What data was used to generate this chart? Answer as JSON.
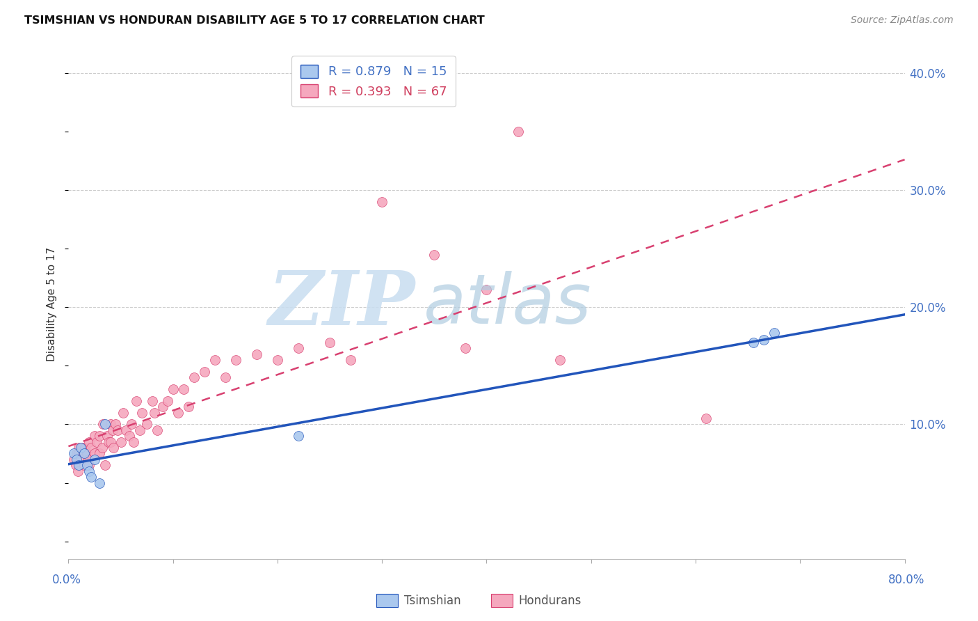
{
  "title": "TSIMSHIAN VS HONDURAN DISABILITY AGE 5 TO 17 CORRELATION CHART",
  "source": "Source: ZipAtlas.com",
  "ylabel": "Disability Age 5 to 17",
  "xlim": [
    0.0,
    0.8
  ],
  "ylim": [
    -0.015,
    0.42
  ],
  "ytick_vals": [
    0.0,
    0.1,
    0.2,
    0.3,
    0.4
  ],
  "ytick_labels": [
    "",
    "10.0%",
    "20.0%",
    "30.0%",
    "40.0%"
  ],
  "xtick_vals": [
    0.0,
    0.1,
    0.2,
    0.3,
    0.4,
    0.5,
    0.6,
    0.7,
    0.8
  ],
  "tsimshian_color": "#aac8ee",
  "honduran_color": "#f5a8be",
  "tsimshian_line_color": "#2255bb",
  "honduran_line_color": "#d84070",
  "legend_r_ts": "R = 0.879",
  "legend_n_ts": "N = 15",
  "legend_r_hon": "R = 0.393",
  "legend_n_hon": "N = 67",
  "tsimshian_x": [
    0.005,
    0.008,
    0.01,
    0.012,
    0.015,
    0.018,
    0.02,
    0.022,
    0.025,
    0.03,
    0.035,
    0.22,
    0.655,
    0.665,
    0.675
  ],
  "tsimshian_y": [
    0.075,
    0.07,
    0.065,
    0.08,
    0.075,
    0.065,
    0.06,
    0.055,
    0.07,
    0.05,
    0.1,
    0.09,
    0.17,
    0.172,
    0.178
  ],
  "honduran_x": [
    0.005,
    0.007,
    0.008,
    0.009,
    0.01,
    0.01,
    0.012,
    0.013,
    0.015,
    0.016,
    0.018,
    0.019,
    0.02,
    0.02,
    0.022,
    0.025,
    0.025,
    0.027,
    0.03,
    0.03,
    0.032,
    0.033,
    0.035,
    0.037,
    0.038,
    0.04,
    0.04,
    0.042,
    0.043,
    0.045,
    0.047,
    0.05,
    0.052,
    0.055,
    0.058,
    0.06,
    0.062,
    0.065,
    0.068,
    0.07,
    0.075,
    0.08,
    0.082,
    0.085,
    0.09,
    0.095,
    0.1,
    0.105,
    0.11,
    0.115,
    0.12,
    0.13,
    0.14,
    0.15,
    0.16,
    0.18,
    0.2,
    0.22,
    0.25,
    0.27,
    0.3,
    0.35,
    0.38,
    0.4,
    0.43,
    0.47,
    0.61
  ],
  "honduran_y": [
    0.07,
    0.065,
    0.075,
    0.06,
    0.08,
    0.075,
    0.07,
    0.08,
    0.065,
    0.08,
    0.075,
    0.07,
    0.085,
    0.065,
    0.08,
    0.09,
    0.075,
    0.085,
    0.075,
    0.09,
    0.08,
    0.1,
    0.065,
    0.09,
    0.085,
    0.1,
    0.085,
    0.095,
    0.08,
    0.1,
    0.095,
    0.085,
    0.11,
    0.095,
    0.09,
    0.1,
    0.085,
    0.12,
    0.095,
    0.11,
    0.1,
    0.12,
    0.11,
    0.095,
    0.115,
    0.12,
    0.13,
    0.11,
    0.13,
    0.115,
    0.14,
    0.145,
    0.155,
    0.14,
    0.155,
    0.16,
    0.155,
    0.165,
    0.17,
    0.155,
    0.29,
    0.245,
    0.165,
    0.215,
    0.35,
    0.155,
    0.105
  ],
  "grid_color": "#cccccc",
  "grid_style": "--",
  "watermark_zip_color": "#c8ddf0",
  "watermark_atlas_color": "#b0cce0",
  "bg_color": "#ffffff",
  "title_fontsize": 11.5,
  "source_fontsize": 10,
  "tick_label_fontsize": 12,
  "legend_fontsize": 13,
  "ylabel_fontsize": 11
}
